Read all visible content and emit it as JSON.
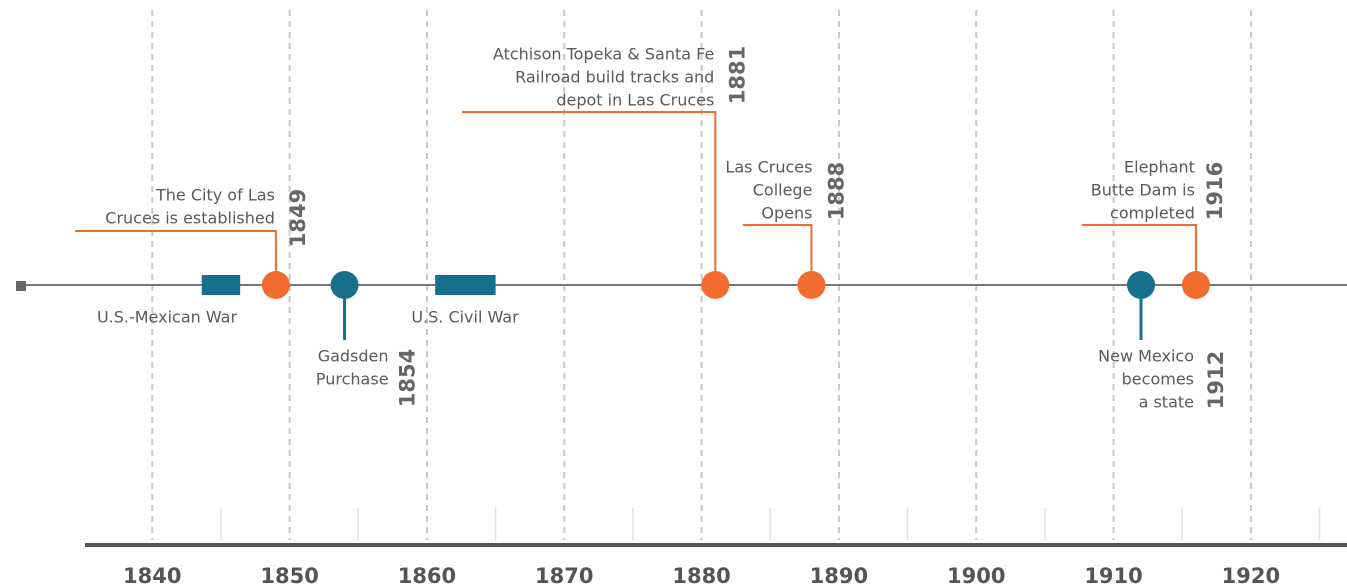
{
  "chart_data": {
    "type": "timeline",
    "xlim": [
      1835.1,
      1927
    ],
    "xticks": [
      1840,
      1850,
      1860,
      1870,
      1880,
      1890,
      1900,
      1910,
      1920
    ],
    "xminorticks": [
      1845,
      1855,
      1865,
      1875,
      1885,
      1895,
      1905,
      1915,
      1925
    ],
    "grid": true,
    "events": [
      {
        "year": 1849,
        "label": [
          "The City of Las",
          "Cruces is established"
        ],
        "color": "#f26b2f"
      },
      {
        "year": 1854,
        "label": [
          "Gadsden",
          "Purchase"
        ],
        "color": "#16708c"
      },
      {
        "year": 1881,
        "label": [
          "Atchison Topeka & Santa Fe",
          "Railroad build tracks and",
          "depot in Las Cruces"
        ],
        "color": "#f26b2f"
      },
      {
        "year": 1888,
        "label": [
          "Las Cruces",
          "College",
          "Opens"
        ],
        "color": "#f26b2f"
      },
      {
        "year": 1912,
        "label": [
          "New Mexico",
          "becomes",
          "a state"
        ],
        "color": "#16708c"
      },
      {
        "year": 1916,
        "label": [
          "Elephant",
          "Butte Dam is",
          "completed"
        ],
        "color": "#f26b2f"
      }
    ],
    "periods": [
      {
        "name": "U.S.-Mexican War",
        "start": 1843.6,
        "end": 1846.4,
        "color": "#16708c"
      },
      {
        "name": "U.S. Civil War",
        "start": 1860.6,
        "end": 1865,
        "color": "#16708c"
      }
    ]
  }
}
